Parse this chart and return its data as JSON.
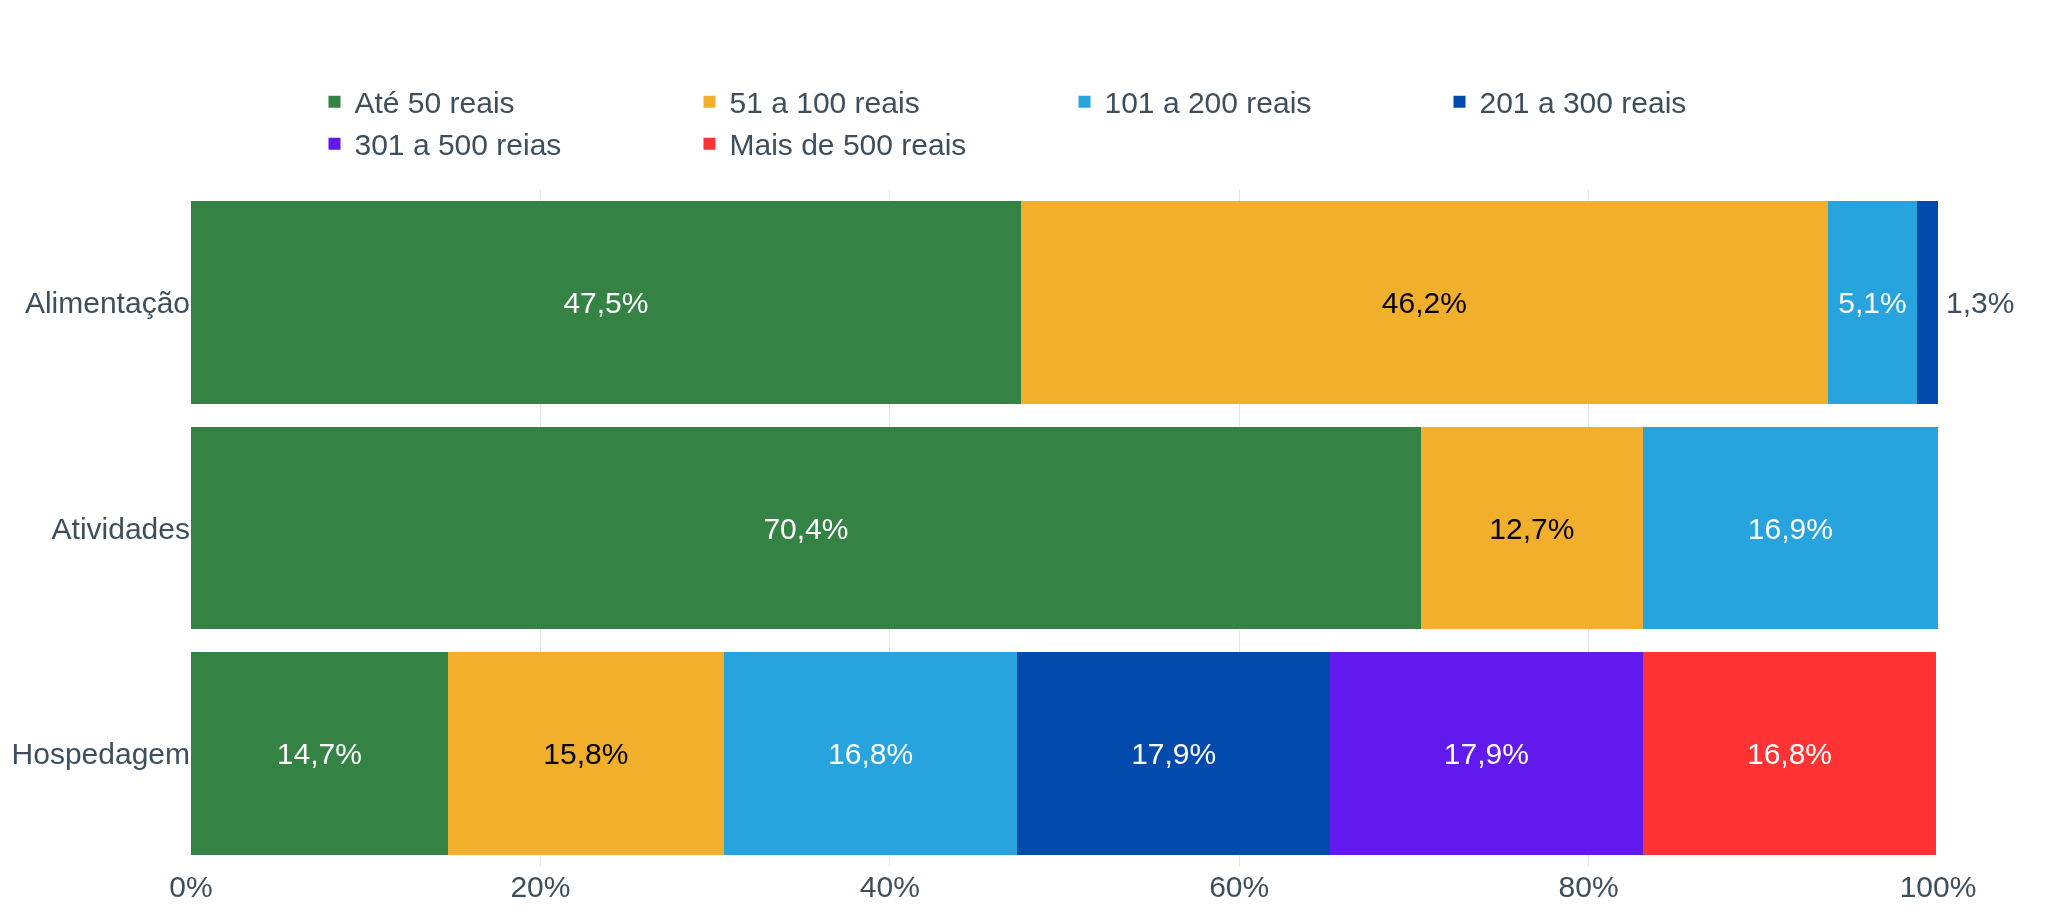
{
  "chart_data": {
    "type": "bar",
    "orientation": "horizontal",
    "stacked": true,
    "categories": [
      "Alimentação",
      "Atividades",
      "Hospedagem"
    ],
    "series": [
      {
        "name": "Até 50 reais",
        "color": "#358245",
        "values": [
          47.5,
          70.4,
          14.7
        ],
        "value_labels": [
          "47,5%",
          "70,4%",
          "14,7%"
        ]
      },
      {
        "name": "51 a 100 reais",
        "color": "#f2af2b",
        "values": [
          46.2,
          12.7,
          15.8
        ],
        "value_labels": [
          "46,2%",
          "12,7%",
          "15,8%"
        ]
      },
      {
        "name": "101 a 200 reais",
        "color": "#27a3dd",
        "values": [
          5.1,
          16.9,
          16.8
        ],
        "value_labels": [
          "5,1%",
          "16,9%",
          "16,8%"
        ]
      },
      {
        "name": "201 a 300 reais",
        "color": "#024bad",
        "values": [
          1.3,
          null,
          17.9
        ],
        "value_labels": [
          "1,3%",
          null,
          "17,9%"
        ]
      },
      {
        "name": "301 a 500 reias",
        "color": "#6119ee",
        "values": [
          null,
          null,
          17.9
        ],
        "value_labels": [
          null,
          null,
          "17,9%"
        ]
      },
      {
        "name": "Mais de 500 reais",
        "color": "#ff3333",
        "values": [
          null,
          null,
          16.8
        ],
        "value_labels": [
          null,
          null,
          "16,8%"
        ]
      }
    ],
    "xlim": [
      0,
      100
    ],
    "xticks": [
      {
        "value": 0,
        "label": "0%"
      },
      {
        "value": 20,
        "label": "20%"
      },
      {
        "value": 40,
        "label": "40%"
      },
      {
        "value": 60,
        "label": "60%"
      },
      {
        "value": 80,
        "label": "80%"
      },
      {
        "value": 100,
        "label": "100%"
      }
    ],
    "grid": "x",
    "legend": "top"
  }
}
